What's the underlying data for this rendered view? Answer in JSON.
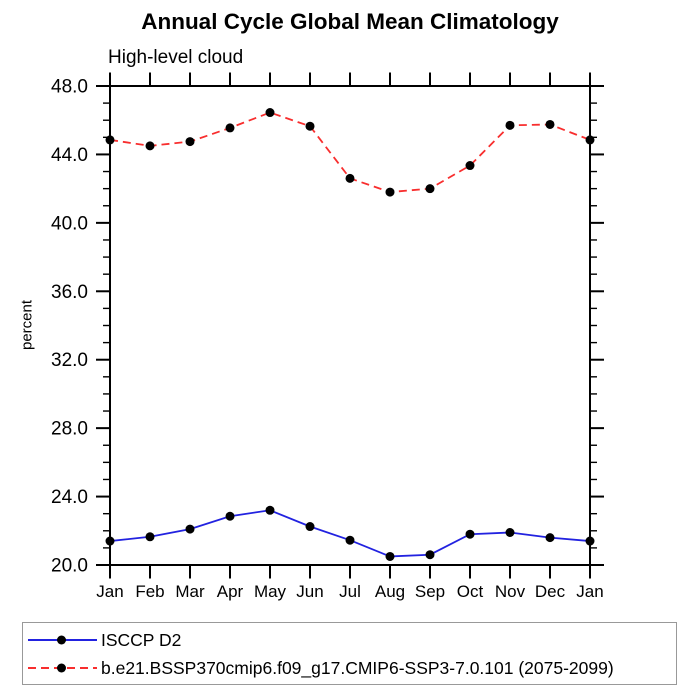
{
  "page": {
    "background": "#ffffff"
  },
  "colors": {
    "axis": "#000000",
    "marker": "#000000",
    "legend_border": "#999999",
    "series_blue": "#2222e0",
    "series_red": "#f82e2e"
  },
  "chart_data": {
    "type": "line",
    "title": "Annual Cycle Global Mean Climatology",
    "subtitle": "High-level cloud",
    "ylabel": "percent",
    "xlabel": "",
    "categories": [
      "Jan",
      "Feb",
      "Mar",
      "Apr",
      "May",
      "Jun",
      "Jul",
      "Aug",
      "Sep",
      "Oct",
      "Nov",
      "Dec",
      "Jan"
    ],
    "ylim": [
      20,
      48
    ],
    "ytick_values": [
      48,
      44,
      40,
      36,
      32,
      28,
      24,
      20
    ],
    "ytick_labels": [
      "48.0",
      "44.0",
      "40.0",
      "36.0",
      "32.0",
      "28.0",
      "24.0",
      "20.0"
    ],
    "ytick_minor_step": 1,
    "grid": false,
    "legend_position": "bottom-left-box",
    "series": [
      {
        "name": "ISCCP D2",
        "color": "#2222e0",
        "line_style": "solid",
        "marker": "circle",
        "marker_color": "#000000",
        "values": [
          21.4,
          21.65,
          22.1,
          22.85,
          23.2,
          22.25,
          21.45,
          20.5,
          20.6,
          21.8,
          21.9,
          21.6,
          21.4
        ]
      },
      {
        "name": "b.e21.BSSP370cmip6.f09_g17.CMIP6-SSP3-7.0.101 (2075-2099)",
        "color": "#f82e2e",
        "line_style": "dashed",
        "marker": "circle",
        "marker_color": "#000000",
        "values": [
          44.85,
          44.5,
          44.75,
          45.55,
          46.45,
          45.65,
          42.6,
          41.8,
          42.0,
          43.35,
          45.7,
          45.75,
          44.85
        ]
      }
    ]
  }
}
